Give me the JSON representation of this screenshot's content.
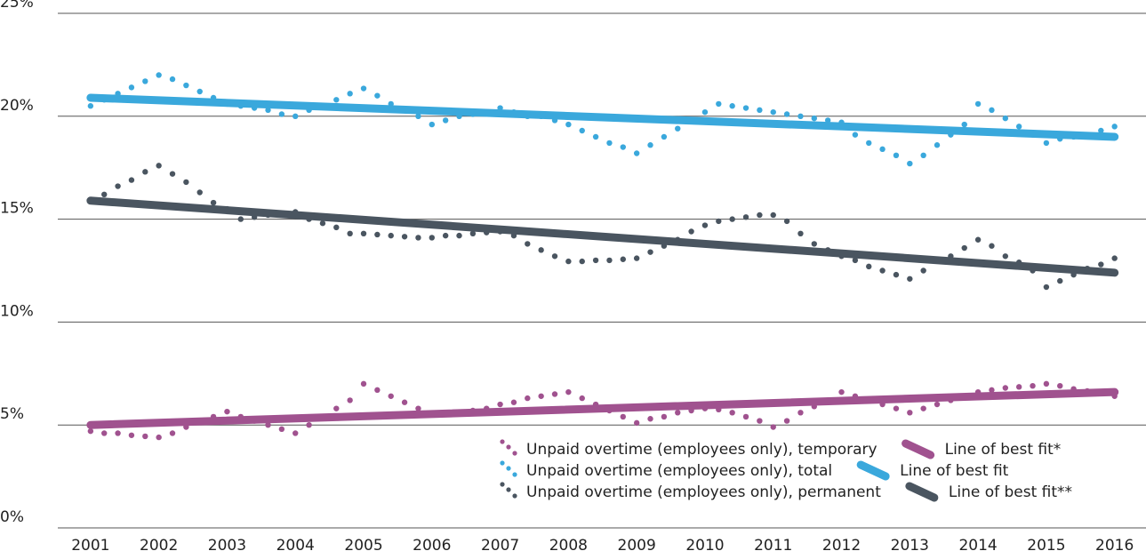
{
  "chart_data": {
    "type": "line",
    "xlim": [
      2000.52,
      2016.46
    ],
    "ylim": [
      0,
      25
    ],
    "xticks": [
      2001,
      2002,
      2003,
      2004,
      2005,
      2006,
      2007,
      2008,
      2009,
      2010,
      2011,
      2012,
      2013,
      2014,
      2015,
      2016
    ],
    "yticks": [
      {
        "value": 0,
        "label": "0%"
      },
      {
        "value": 5,
        "label": "5%"
      },
      {
        "value": 10,
        "label": "10%"
      },
      {
        "value": 15,
        "label": "15%"
      },
      {
        "value": 20,
        "label": "20%"
      },
      {
        "value": 25,
        "label": "25%"
      }
    ],
    "grid": true,
    "x": [
      2001,
      2001.2,
      2001.4,
      2001.6,
      2001.8,
      2002,
      2002.2,
      2002.4,
      2002.6,
      2002.8,
      2003,
      2003.2,
      2003.4,
      2003.6,
      2003.8,
      2004,
      2004.2,
      2004.4,
      2004.6,
      2004.8,
      2005,
      2005.2,
      2005.4,
      2005.6,
      2005.8,
      2006,
      2006.2,
      2006.4,
      2006.6,
      2006.8,
      2007,
      2007.2,
      2007.4,
      2007.6,
      2007.8,
      2008,
      2008.2,
      2008.4,
      2008.6,
      2008.8,
      2009,
      2009.2,
      2009.4,
      2009.6,
      2009.8,
      2010,
      2010.2,
      2010.4,
      2010.6,
      2010.8,
      2011,
      2011.2,
      2011.4,
      2011.6,
      2011.8,
      2012,
      2012.2,
      2012.4,
      2012.6,
      2012.8,
      2013,
      2013.2,
      2013.4,
      2013.6,
      2013.8,
      2014,
      2014.2,
      2014.4,
      2014.6,
      2014.8,
      2015,
      2015.2,
      2015.4,
      2015.6,
      2015.8,
      2016
    ],
    "series": [
      {
        "name": "Unpaid overtime (employees only), temporary",
        "color": "#a0528f",
        "style": "dots",
        "values": [
          4.7,
          4.6,
          4.6,
          4.5,
          4.45,
          4.4,
          4.6,
          4.9,
          5.2,
          5.4,
          5.65,
          5.4,
          5.2,
          5.0,
          4.8,
          4.6,
          5.0,
          5.4,
          5.8,
          6.2,
          7.0,
          6.7,
          6.4,
          6.1,
          5.8,
          5.5,
          5.55,
          5.6,
          5.7,
          5.8,
          6.0,
          6.1,
          6.3,
          6.4,
          6.5,
          6.6,
          6.3,
          6.0,
          5.7,
          5.4,
          5.1,
          5.3,
          5.4,
          5.6,
          5.7,
          5.8,
          5.75,
          5.6,
          5.4,
          5.2,
          4.9,
          5.2,
          5.6,
          5.9,
          6.2,
          6.6,
          6.4,
          6.2,
          6.0,
          5.8,
          5.6,
          5.8,
          6.0,
          6.2,
          6.4,
          6.6,
          6.7,
          6.8,
          6.85,
          6.9,
          7.0,
          6.9,
          6.75,
          6.65,
          6.55,
          6.4
        ]
      },
      {
        "name": "Unpaid overtime (employees only), total",
        "color": "#3aa8dc",
        "style": "dots",
        "values": [
          20.5,
          20.8,
          21.1,
          21.4,
          21.7,
          22.0,
          21.8,
          21.5,
          21.2,
          20.9,
          20.6,
          20.5,
          20.4,
          20.3,
          20.1,
          20.0,
          20.3,
          20.5,
          20.8,
          21.1,
          21.35,
          21.0,
          20.6,
          20.3,
          20.0,
          19.6,
          19.8,
          20.0,
          20.1,
          20.2,
          20.4,
          20.2,
          20.0,
          20.0,
          19.8,
          19.6,
          19.3,
          19.0,
          18.7,
          18.5,
          18.2,
          18.6,
          19.0,
          19.4,
          19.8,
          20.2,
          20.6,
          20.5,
          20.4,
          20.3,
          20.2,
          20.1,
          20.0,
          19.9,
          19.8,
          19.7,
          19.1,
          18.7,
          18.4,
          18.1,
          17.7,
          18.1,
          18.6,
          19.1,
          19.6,
          20.6,
          20.3,
          19.9,
          19.5,
          19.1,
          18.7,
          18.9,
          19.0,
          19.1,
          19.3,
          19.5
        ]
      },
      {
        "name": "Unpaid overtime (employees only), permanent",
        "color": "#4a5560",
        "style": "dots",
        "values": [
          15.9,
          16.2,
          16.6,
          16.9,
          17.3,
          17.6,
          17.2,
          16.8,
          16.3,
          15.8,
          15.5,
          15.0,
          15.1,
          15.2,
          15.3,
          15.35,
          15.0,
          14.8,
          14.6,
          14.3,
          14.3,
          14.25,
          14.2,
          14.15,
          14.1,
          14.1,
          14.2,
          14.2,
          14.3,
          14.35,
          14.4,
          14.2,
          13.8,
          13.5,
          13.2,
          12.95,
          12.95,
          13.0,
          13.0,
          13.05,
          13.1,
          13.4,
          13.7,
          14.0,
          14.4,
          14.7,
          14.9,
          15.0,
          15.1,
          15.2,
          15.2,
          14.9,
          14.3,
          13.8,
          13.5,
          13.2,
          13.0,
          12.7,
          12.5,
          12.3,
          12.1,
          12.5,
          13.0,
          13.2,
          13.6,
          14.0,
          13.7,
          13.2,
          12.9,
          12.5,
          11.7,
          12.0,
          12.3,
          12.6,
          12.8,
          13.1
        ]
      },
      {
        "name": "Line of best fit*",
        "color": "#a0528f",
        "style": "line",
        "x": [
          2001,
          2016
        ],
        "values": [
          5.0,
          6.6
        ]
      },
      {
        "name": "Line of best fit",
        "color": "#3aa8dc",
        "style": "line",
        "x": [
          2001,
          2016
        ],
        "values": [
          20.9,
          19.0
        ]
      },
      {
        "name": "Line of best fit**",
        "color": "#4a5560",
        "style": "line",
        "x": [
          2001,
          2016
        ],
        "values": [
          15.9,
          12.4
        ]
      }
    ]
  }
}
